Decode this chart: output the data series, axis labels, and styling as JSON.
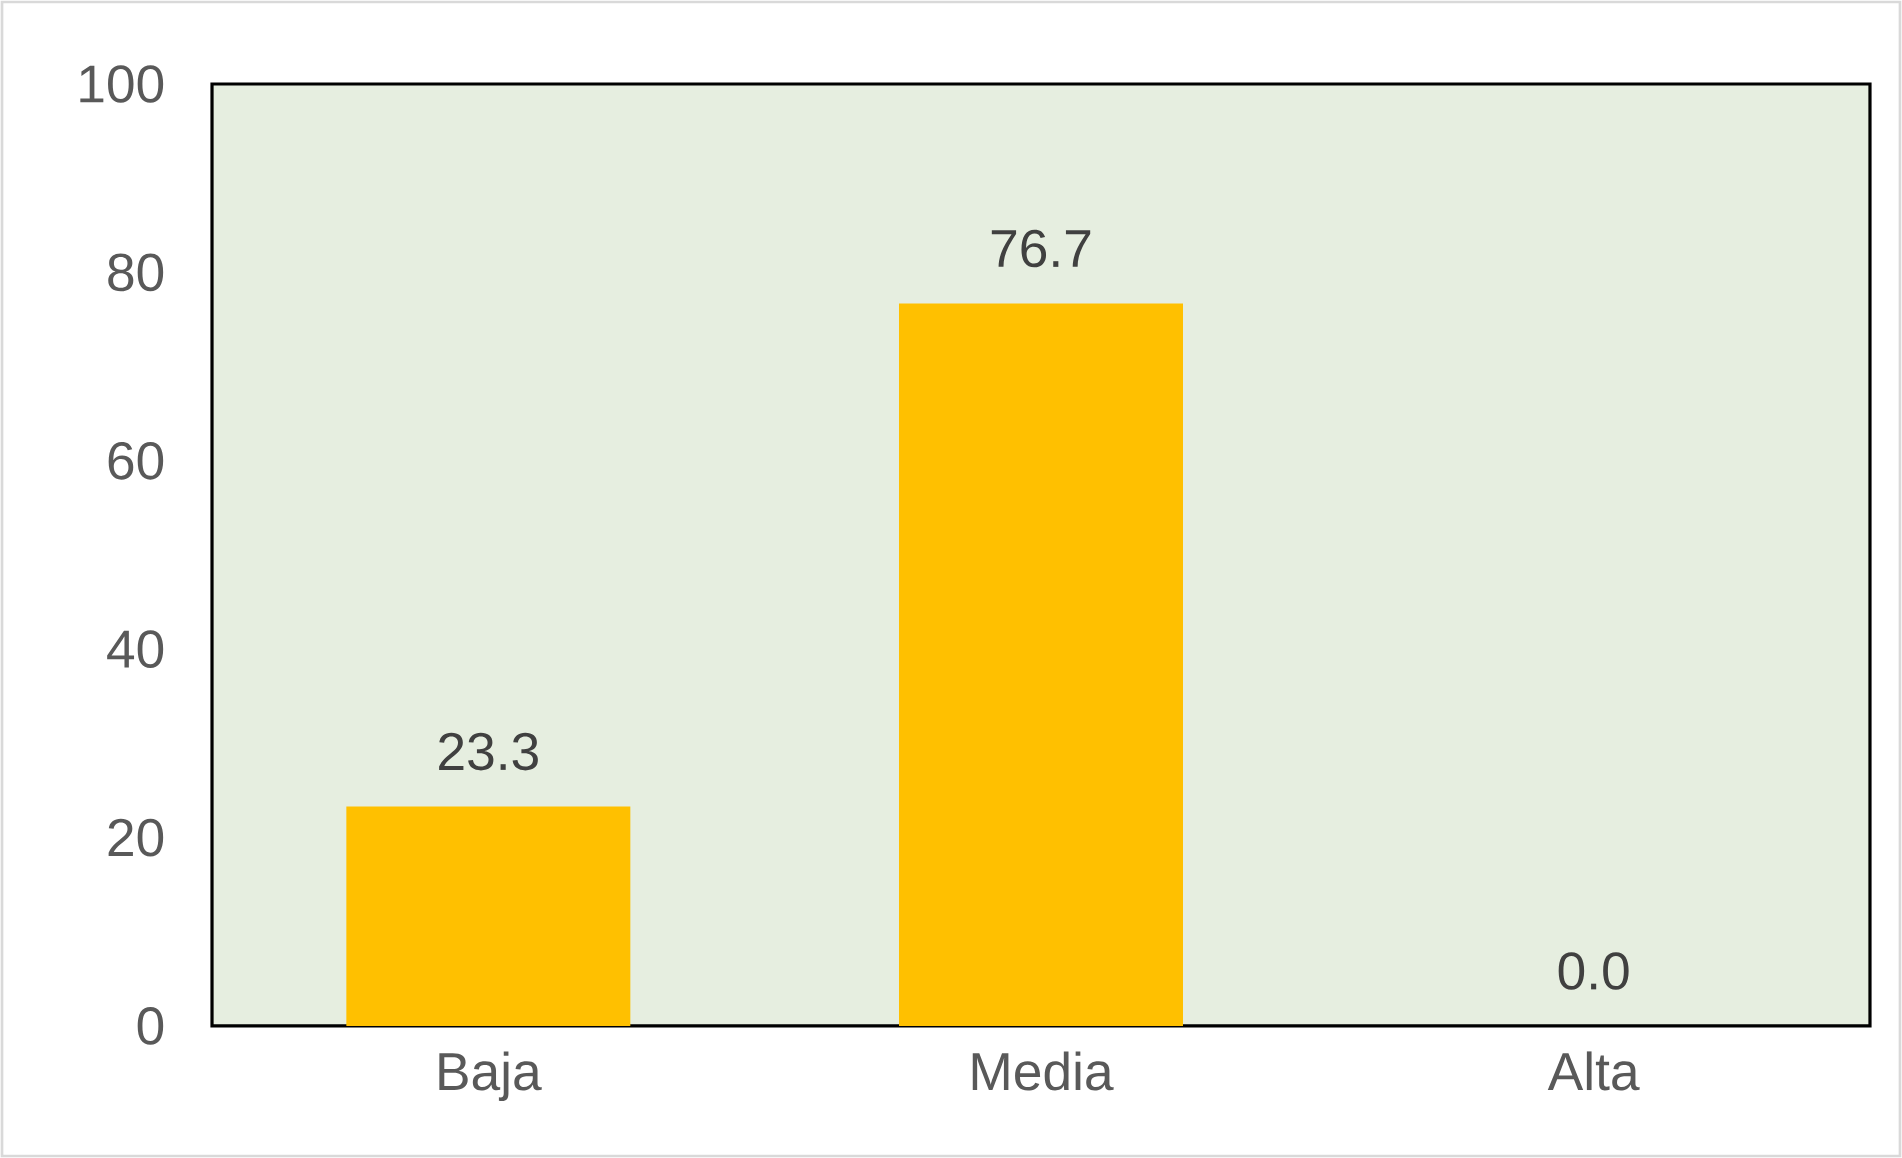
{
  "chart_data": {
    "type": "bar",
    "categories": [
      "Baja",
      "Media",
      "Alta"
    ],
    "values": [
      23.3,
      76.7,
      0.0
    ],
    "value_labels": [
      "23.3",
      "76.7",
      "0.0"
    ],
    "color": "#ffc000",
    "ylim": [
      0,
      100
    ],
    "yticks": [
      0,
      20,
      40,
      60,
      80,
      100
    ],
    "grid": false
  }
}
